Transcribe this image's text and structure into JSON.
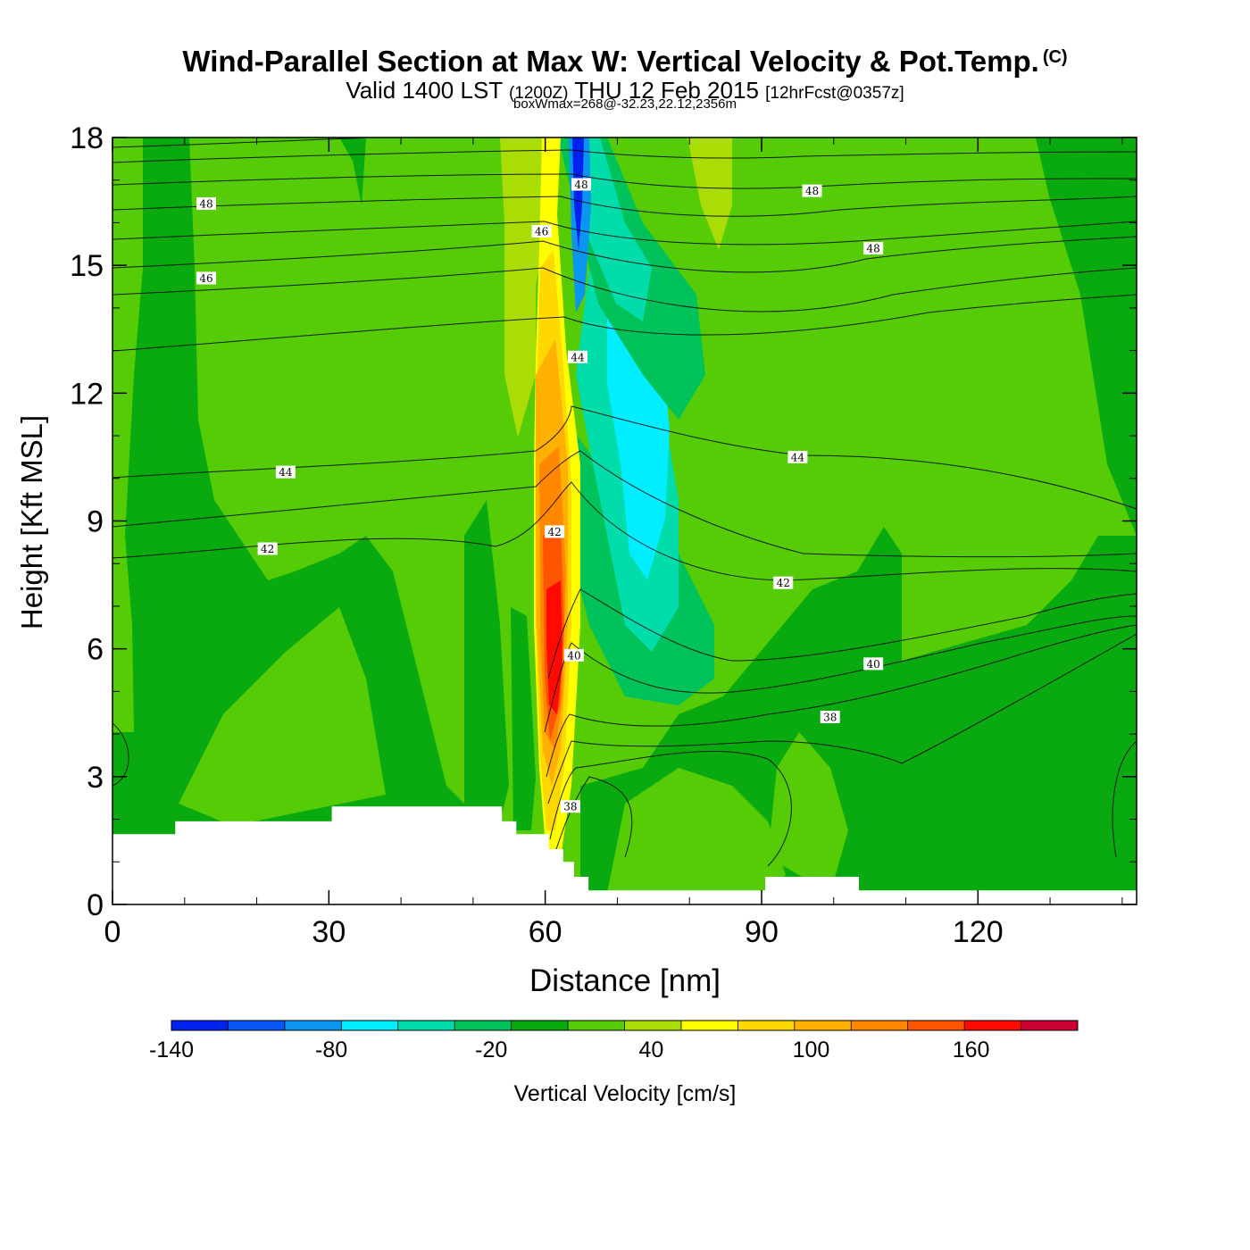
{
  "titles": {
    "main": "Wind-Parallel Section at Max W: Vertical Velocity & Pot.Temp.",
    "copyright": "(C)",
    "valid_prefix": "Valid 1400 LST",
    "valid_utc": "(1200Z)",
    "valid_date": "THU 12 Feb 2015",
    "forecast": "[12hrFcst@0357z]",
    "boxwmax": "boxWmax=268@-32.23,22.12,2356m"
  },
  "chart_data": {
    "type": "heatmap",
    "title": "Wind-Parallel Section at Max W: Vertical Velocity & Pot.Temp.",
    "xlabel": "Distance [nm]",
    "ylabel": "Height [Kft MSL]",
    "xlim": [
      0,
      142
    ],
    "ylim": [
      0,
      18
    ],
    "x_ticks": [
      0,
      30,
      60,
      90,
      120
    ],
    "y_ticks": [
      0,
      3,
      6,
      9,
      12,
      15,
      18
    ],
    "colorbar": {
      "label": "Vertical Velocity [cm/s]",
      "tick_labels": [
        "-140",
        "-80",
        "-20",
        "40",
        "100",
        "160"
      ],
      "tick_values": [
        -140,
        -80,
        -20,
        40,
        100,
        160
      ],
      "range": [
        -140,
        200
      ],
      "step": 20,
      "colors": [
        "#0022ee",
        "#0a55f5",
        "#0a96f0",
        "#00eeff",
        "#00ddaa",
        "#00c25a",
        "#08aa10",
        "#55cc05",
        "#aadd05",
        "#ffff00",
        "#ffd800",
        "#ffb000",
        "#ff8800",
        "#ff5500",
        "#ff0a00",
        "#cc0033"
      ]
    },
    "isentrope_labels": [
      {
        "x": 13,
        "y": 16.45,
        "label": "48"
      },
      {
        "x": 13,
        "y": 14.7,
        "label": "46"
      },
      {
        "x": 65,
        "y": 16.9,
        "label": "48"
      },
      {
        "x": 59.5,
        "y": 15.8,
        "label": "46"
      },
      {
        "x": 97,
        "y": 16.75,
        "label": "48"
      },
      {
        "x": 105.5,
        "y": 15.4,
        "label": "48"
      },
      {
        "x": 64.5,
        "y": 12.85,
        "label": "44"
      },
      {
        "x": 24,
        "y": 10.15,
        "label": "44"
      },
      {
        "x": 95,
        "y": 10.5,
        "label": "44"
      },
      {
        "x": 21.5,
        "y": 8.35,
        "label": "42"
      },
      {
        "x": 61.3,
        "y": 8.75,
        "label": "42"
      },
      {
        "x": 93,
        "y": 7.55,
        "label": "42"
      },
      {
        "x": 64,
        "y": 5.85,
        "label": "40"
      },
      {
        "x": 105.5,
        "y": 5.65,
        "label": "40"
      },
      {
        "x": 99.5,
        "y": 4.4,
        "label": "38"
      },
      {
        "x": 63.5,
        "y": 2.3,
        "label": "38"
      }
    ],
    "terrain_kft": [
      {
        "x": 0,
        "y": 1.65
      },
      {
        "x": 8.7,
        "y": 1.65
      },
      {
        "x": 8.7,
        "y": 1.95
      },
      {
        "x": 30.4,
        "y": 1.95
      },
      {
        "x": 30.4,
        "y": 2.3
      },
      {
        "x": 54,
        "y": 2.3
      },
      {
        "x": 54,
        "y": 1.95
      },
      {
        "x": 56,
        "y": 1.95
      },
      {
        "x": 56,
        "y": 1.65
      },
      {
        "x": 60.5,
        "y": 1.65
      },
      {
        "x": 60.5,
        "y": 1.3
      },
      {
        "x": 62.5,
        "y": 1.3
      },
      {
        "x": 62.5,
        "y": 1.0
      },
      {
        "x": 64,
        "y": 1.0
      },
      {
        "x": 64,
        "y": 0.65
      },
      {
        "x": 66,
        "y": 0.65
      },
      {
        "x": 66,
        "y": 0.33
      },
      {
        "x": 90.5,
        "y": 0.33
      },
      {
        "x": 90.5,
        "y": 0.65
      },
      {
        "x": 103.5,
        "y": 0.65
      },
      {
        "x": 103.5,
        "y": 0.33
      },
      {
        "x": 142,
        "y": 0.33
      }
    ],
    "peak_w": {
      "value": 268,
      "units": "cm/s",
      "lat": -32.23,
      "lon": 22.12,
      "height_m": 2356
    }
  }
}
